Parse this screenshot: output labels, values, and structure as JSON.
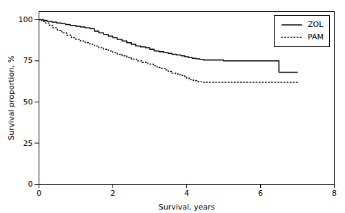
{
  "chart_data": {
    "type": "step",
    "title": "",
    "xlabel": "Survival, years",
    "ylabel": "Survival proportion, %",
    "xlim": [
      0,
      8
    ],
    "ylim": [
      0,
      105
    ],
    "xticks": [
      0,
      2,
      4,
      6,
      8
    ],
    "yticks": [
      0,
      25,
      50,
      75,
      100
    ],
    "grid": false,
    "legend": "upper-right",
    "series": [
      {
        "name": "ZOL",
        "color": "#000000",
        "line_style": "solid",
        "x": [
          0,
          0.12,
          0.22,
          0.35,
          0.48,
          0.6,
          0.72,
          0.85,
          1.0,
          1.12,
          1.25,
          1.38,
          1.5,
          1.62,
          1.75,
          1.88,
          2.0,
          2.12,
          2.25,
          2.38,
          2.5,
          2.62,
          2.75,
          2.88,
          3.0,
          3.12,
          3.25,
          3.38,
          3.5,
          3.6,
          3.72,
          3.85,
          3.95,
          4.05,
          4.15,
          4.25,
          4.35,
          4.45,
          4.9,
          5.0,
          5.12,
          5.5,
          6.5,
          7.0
        ],
        "values": [
          100,
          99.5,
          99,
          98.5,
          98,
          97.5,
          97,
          96.5,
          96,
          95.5,
          95,
          94.5,
          93,
          92,
          91,
          90,
          89,
          88,
          87,
          86,
          85,
          84,
          83.5,
          83,
          82,
          81,
          80.5,
          80,
          79.5,
          79,
          78.5,
          78,
          77.5,
          77,
          76.5,
          76.2,
          75.8,
          75.5,
          75.5,
          75,
          75,
          75,
          68,
          68
        ]
      },
      {
        "name": "PAM",
        "color": "#000000",
        "line_style": "dotted",
        "x": [
          0,
          0.08,
          0.18,
          0.28,
          0.38,
          0.5,
          0.62,
          0.75,
          0.88,
          1.0,
          1.12,
          1.25,
          1.38,
          1.5,
          1.62,
          1.75,
          1.88,
          2.0,
          2.12,
          2.25,
          2.38,
          2.5,
          2.65,
          2.8,
          2.95,
          3.1,
          3.2,
          3.3,
          3.42,
          3.5,
          3.6,
          3.7,
          3.8,
          3.88,
          3.95,
          4.0,
          4.08,
          4.18,
          4.28,
          4.4,
          5.0,
          6.5,
          7.0
        ],
        "values": [
          100,
          99,
          98,
          96.5,
          95,
          93.5,
          92,
          90.5,
          89,
          88,
          87,
          86,
          85,
          84,
          83,
          82,
          81,
          80,
          79,
          78,
          77,
          76,
          75,
          74,
          73,
          72,
          71,
          70.5,
          69.5,
          68.5,
          67.5,
          67,
          66.5,
          66,
          65.5,
          64.5,
          63.5,
          63,
          62.5,
          62,
          62,
          62,
          62
        ]
      }
    ]
  }
}
